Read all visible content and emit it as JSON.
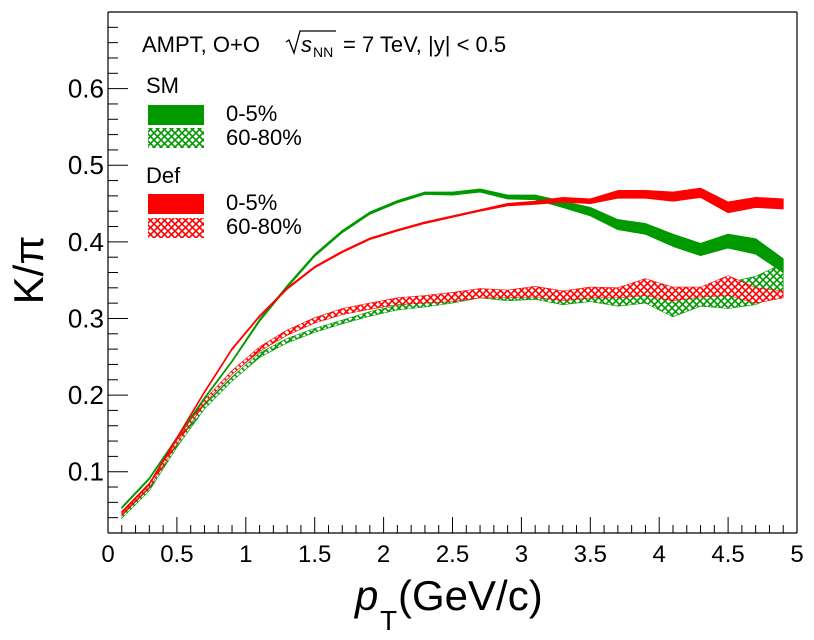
{
  "chart_data": {
    "type": "line",
    "title": "AMPT, O+O",
    "title_suffix": "= 7 TeV, |y| < 0.5",
    "title_energy_symbol": "s",
    "title_energy_subscript": "NN",
    "xlabel": "p",
    "xlabel_sub": "T",
    "xlabel_unit": "(GeV/c)",
    "ylabel": "K/π",
    "xlim": [
      0,
      5
    ],
    "ylim": [
      0.02,
      0.7
    ],
    "x_ticks": [
      0,
      0.5,
      1,
      1.5,
      2,
      2.5,
      3,
      3.5,
      4,
      4.5,
      5
    ],
    "x_tick_labels": [
      "0",
      "0.5",
      "1",
      "1.5",
      "2",
      "2.5",
      "3",
      "3.5",
      "4",
      "4.5",
      "5"
    ],
    "y_ticks": [
      0.1,
      0.2,
      0.3,
      0.4,
      0.5,
      0.6
    ],
    "y_tick_labels": [
      "0.1",
      "0.2",
      "0.3",
      "0.4",
      "0.5",
      "0.6"
    ],
    "x": [
      0.1,
      0.3,
      0.5,
      0.7,
      0.9,
      1.1,
      1.3,
      1.5,
      1.7,
      1.9,
      2.1,
      2.3,
      2.5,
      2.7,
      2.9,
      3.1,
      3.3,
      3.5,
      3.7,
      3.9,
      4.1,
      4.3,
      4.5,
      4.7,
      4.9
    ],
    "legend": {
      "groups": [
        {
          "title": "SM",
          "entries": [
            "0-5%",
            "60-80%"
          ]
        },
        {
          "title": "Def",
          "entries": [
            "0-5%",
            "60-80%"
          ]
        }
      ]
    },
    "colors": {
      "SM": "#009900",
      "Def": "#ff0000"
    },
    "series": [
      {
        "name": "SM 0-5%",
        "model": "SM",
        "centrality": "0-5%",
        "style": "solid",
        "low": [
          0.052,
          0.09,
          0.143,
          0.195,
          0.243,
          0.296,
          0.34,
          0.381,
          0.412,
          0.436,
          0.451,
          0.462,
          0.461,
          0.465,
          0.456,
          0.455,
          0.445,
          0.434,
          0.416,
          0.41,
          0.394,
          0.382,
          0.392,
          0.384,
          0.36
        ],
        "high": [
          0.054,
          0.092,
          0.145,
          0.197,
          0.245,
          0.299,
          0.343,
          0.384,
          0.415,
          0.439,
          0.454,
          0.465,
          0.465,
          0.469,
          0.461,
          0.461,
          0.453,
          0.445,
          0.429,
          0.424,
          0.41,
          0.398,
          0.41,
          0.404,
          0.378
        ]
      },
      {
        "name": "SM 60-80%",
        "model": "SM",
        "centrality": "60-80%",
        "style": "hatched",
        "low": [
          0.039,
          0.075,
          0.132,
          0.182,
          0.218,
          0.249,
          0.268,
          0.282,
          0.293,
          0.303,
          0.311,
          0.315,
          0.32,
          0.327,
          0.323,
          0.325,
          0.318,
          0.322,
          0.316,
          0.32,
          0.302,
          0.316,
          0.313,
          0.318,
          0.334
        ],
        "high": [
          0.043,
          0.08,
          0.138,
          0.188,
          0.224,
          0.255,
          0.274,
          0.287,
          0.298,
          0.309,
          0.317,
          0.322,
          0.328,
          0.336,
          0.333,
          0.336,
          0.332,
          0.34,
          0.337,
          0.343,
          0.333,
          0.338,
          0.347,
          0.355,
          0.372
        ]
      },
      {
        "name": "Def 0-5%",
        "model": "Def",
        "centrality": "0-5%",
        "style": "solid",
        "low": [
          0.046,
          0.083,
          0.143,
          0.203,
          0.259,
          0.302,
          0.338,
          0.366,
          0.386,
          0.403,
          0.414,
          0.424,
          0.432,
          0.44,
          0.447,
          0.449,
          0.452,
          0.45,
          0.457,
          0.457,
          0.453,
          0.458,
          0.438,
          0.445,
          0.443
        ],
        "high": [
          0.048,
          0.085,
          0.145,
          0.205,
          0.261,
          0.304,
          0.34,
          0.368,
          0.388,
          0.405,
          0.416,
          0.426,
          0.434,
          0.442,
          0.45,
          0.453,
          0.458,
          0.456,
          0.467,
          0.467,
          0.465,
          0.47,
          0.452,
          0.458,
          0.456
        ]
      },
      {
        "name": "Def 60-80%",
        "model": "Def",
        "centrality": "60-80%",
        "style": "hatched",
        "low": [
          0.043,
          0.079,
          0.136,
          0.189,
          0.227,
          0.257,
          0.278,
          0.294,
          0.305,
          0.312,
          0.318,
          0.32,
          0.322,
          0.327,
          0.327,
          0.328,
          0.323,
          0.327,
          0.327,
          0.33,
          0.323,
          0.328,
          0.33,
          0.32,
          0.327
        ],
        "high": [
          0.047,
          0.083,
          0.141,
          0.194,
          0.232,
          0.263,
          0.285,
          0.301,
          0.313,
          0.32,
          0.327,
          0.33,
          0.334,
          0.339,
          0.337,
          0.342,
          0.336,
          0.341,
          0.34,
          0.352,
          0.341,
          0.341,
          0.356,
          0.34,
          0.336
        ]
      }
    ]
  }
}
